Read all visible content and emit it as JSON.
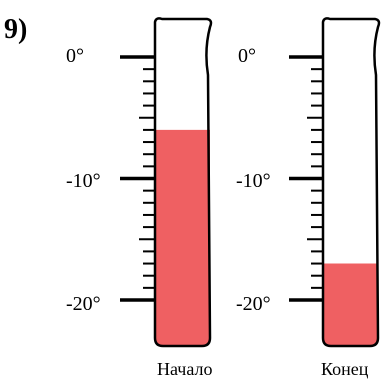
{
  "problem": {
    "number": "9)"
  },
  "scale": {
    "labels": [
      {
        "value": 0,
        "text": "0°"
      },
      {
        "value": -10,
        "text": "-10°"
      },
      {
        "value": -20,
        "text": "-20°"
      }
    ],
    "minor_step": 1,
    "major_step": 10,
    "range": [
      -20,
      0
    ]
  },
  "thermometers": [
    {
      "caption": "Начало",
      "reading": -6
    },
    {
      "caption": "Конец",
      "reading": -17
    }
  ],
  "colors": {
    "liquid": "#ef6062",
    "ink": "#000000"
  }
}
